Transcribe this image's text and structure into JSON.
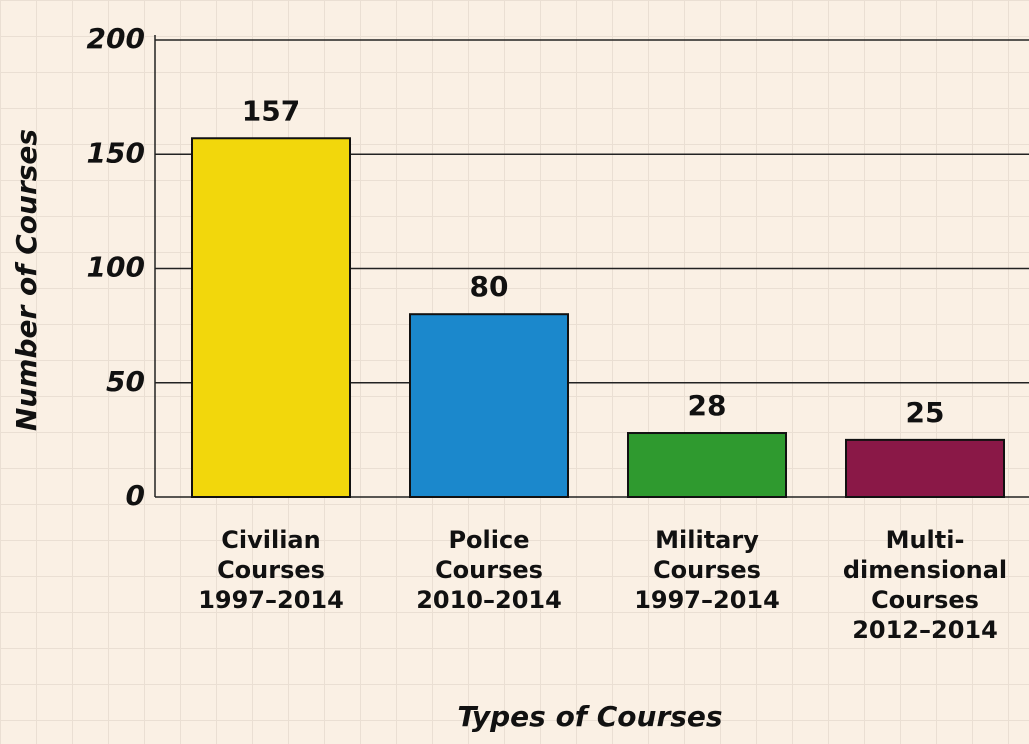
{
  "chart_data": {
    "type": "bar",
    "categories": [
      "Civilian\nCourses\n1997–2014",
      "Police\nCourses\n2010–2014",
      "Military\nCourses\n1997–2014",
      "Multi-\ndimensional\nCourses\n2012–2014"
    ],
    "values": [
      157,
      80,
      28,
      25
    ],
    "colors": [
      "#f2d70c",
      "#1b88cc",
      "#2f9a2f",
      "#8a1847"
    ],
    "x_label": "Types of Courses",
    "y_label": "Number of Courses",
    "ylim": [
      0,
      200
    ],
    "yticks": [
      0,
      50,
      100,
      150,
      200
    ],
    "grid": true
  }
}
